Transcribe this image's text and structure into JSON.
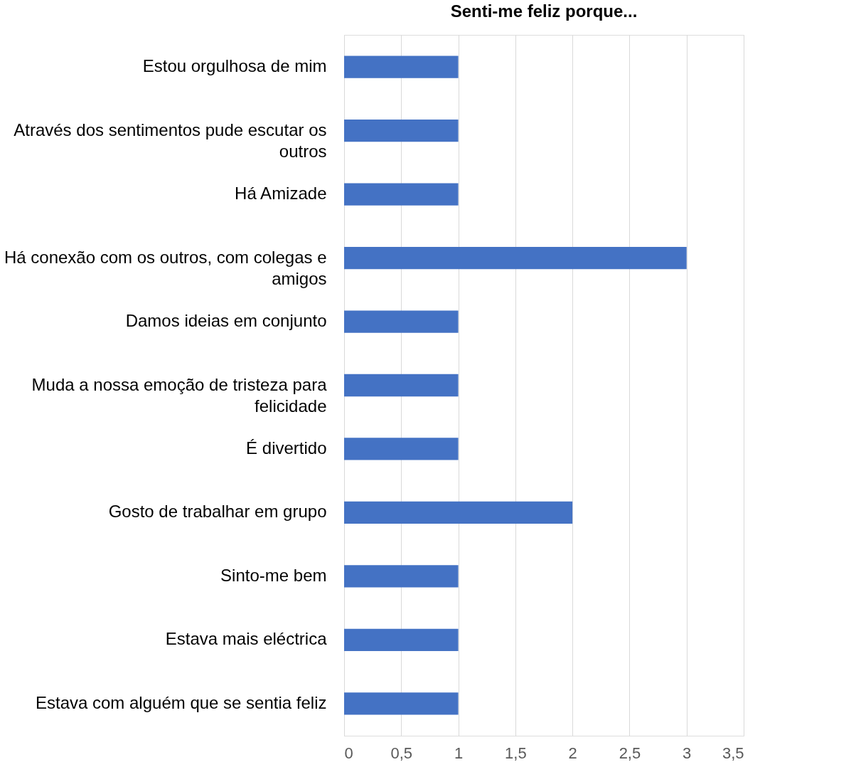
{
  "chart_data": {
    "type": "bar",
    "orientation": "horizontal",
    "title": "Senti-me feliz porque...",
    "categories": [
      "Estou orgulhosa de mim",
      "Através dos sentimentos pude escutar os outros",
      "Há Amizade",
      "Há conexão com os outros, com colegas e amigos",
      "Damos ideias em conjunto",
      "Muda a nossa emoção de tristeza para felicidade",
      "É divertido",
      "Gosto de trabalhar em grupo",
      "Sinto-me bem",
      "Estava mais eléctrica",
      "Estava com alguém que se sentia feliz"
    ],
    "values": [
      1,
      1,
      1,
      3,
      1,
      1,
      1,
      2,
      1,
      1,
      1
    ],
    "color": "#4472c4",
    "xlim": [
      0,
      3.5
    ],
    "xticks": [
      0,
      {
        "value": 0.5,
        "label": "0,5"
      },
      1,
      {
        "value": 1.5,
        "label": "1,5"
      },
      2,
      {
        "value": 2.5,
        "label": "2,5"
      },
      3,
      {
        "value": 3.5,
        "label": "3,5"
      }
    ],
    "grid": "x"
  }
}
